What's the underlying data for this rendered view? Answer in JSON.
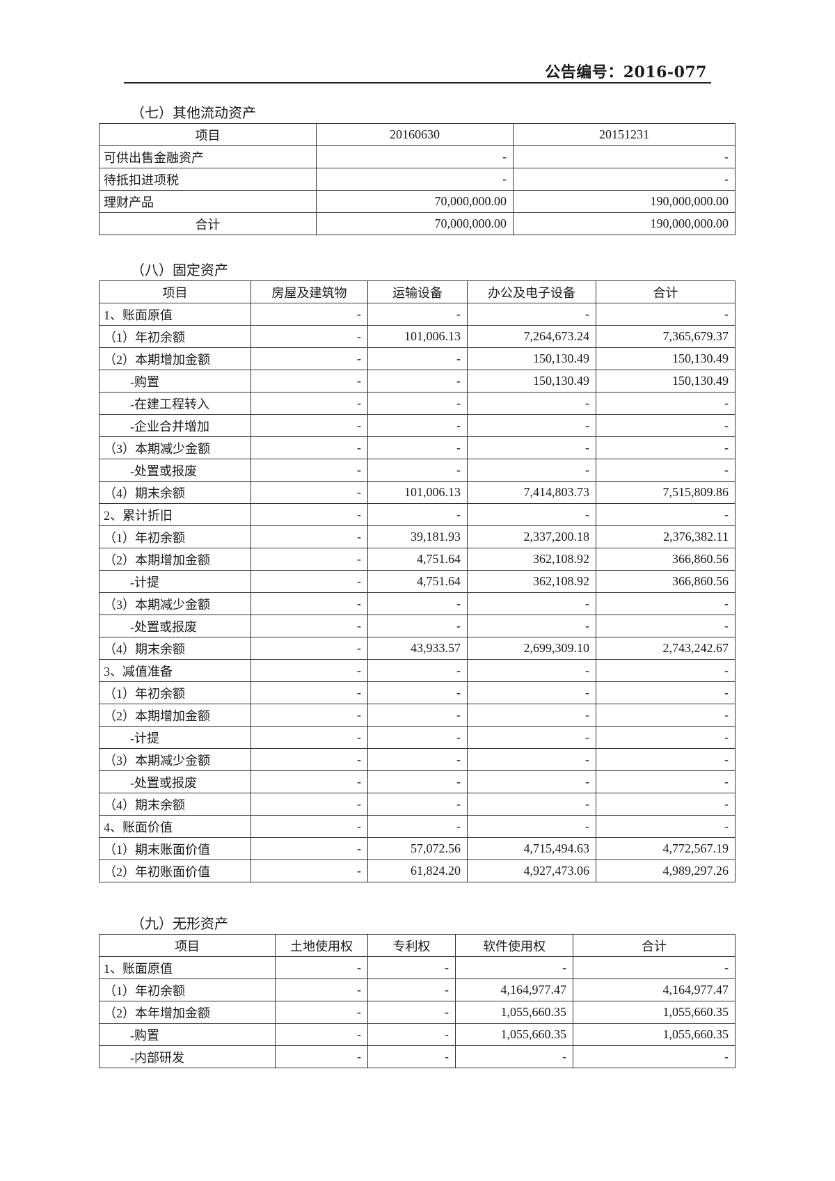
{
  "header": {
    "announcement_no": "公告编号：2016-077"
  },
  "section7": {
    "title": "（七）其他流动资产",
    "columns": [
      "项目",
      "20160630",
      "20151231"
    ],
    "rows": [
      [
        "可供出售金融资产",
        "-",
        "-"
      ],
      [
        "待抵扣进项税",
        "-",
        "-"
      ],
      [
        "理财产品",
        "70,000,000.00",
        "190,000,000.00"
      ],
      [
        "合计",
        "70,000,000.00",
        "190,000,000.00"
      ]
    ]
  },
  "section8": {
    "title": "（八）固定资产",
    "columns": [
      "项目",
      "房屋及建筑物",
      "运输设备",
      "办公及电子设备",
      "合计"
    ],
    "rows": [
      [
        "1、账面原值",
        "-",
        "-",
        "-",
        "-"
      ],
      [
        "（1）年初余额",
        "-",
        "101,006.13",
        "7,264,673.24",
        "7,365,679.37"
      ],
      [
        "（2）本期增加金额",
        "-",
        "-",
        "150,130.49",
        "150,130.49"
      ],
      [
        "-购置",
        "-",
        "-",
        "150,130.49",
        "150,130.49"
      ],
      [
        "-在建工程转入",
        "-",
        "-",
        "-",
        "-"
      ],
      [
        "-企业合并增加",
        "-",
        "-",
        "-",
        "-"
      ],
      [
        "（3）本期减少金额",
        "-",
        "-",
        "-",
        "-"
      ],
      [
        "-处置或报废",
        "-",
        "-",
        "-",
        "-"
      ],
      [
        "（4）期末余额",
        "-",
        "101,006.13",
        "7,414,803.73",
        "7,515,809.86"
      ],
      [
        "2、累计折旧",
        "-",
        "-",
        "-",
        "-"
      ],
      [
        "（1）年初余额",
        "-",
        "39,181.93",
        "2,337,200.18",
        "2,376,382.11"
      ],
      [
        "（2）本期增加金额",
        "-",
        "4,751.64",
        "362,108.92",
        "366,860.56"
      ],
      [
        "-计提",
        "-",
        "4,751.64",
        "362,108.92",
        "366,860.56"
      ],
      [
        "（3）本期减少金额",
        "-",
        "-",
        "-",
        "-"
      ],
      [
        "-处置或报废",
        "-",
        "-",
        "-",
        "-"
      ],
      [
        "（4）期末余额",
        "-",
        "43,933.57",
        "2,699,309.10",
        "2,743,242.67"
      ],
      [
        "3、减值准备",
        "-",
        "-",
        "-",
        "-"
      ],
      [
        "（1）年初余额",
        "-",
        "-",
        "-",
        "-"
      ],
      [
        "（2）本期增加金额",
        "-",
        "-",
        "-",
        "-"
      ],
      [
        "-计提",
        "-",
        "-",
        "-",
        "-"
      ],
      [
        "（3）本期减少金额",
        "-",
        "-",
        "-",
        "-"
      ],
      [
        "-处置或报废",
        "-",
        "-",
        "-",
        "-"
      ],
      [
        "（4）期末余额",
        "-",
        "-",
        "-",
        "-"
      ],
      [
        "4、账面价值",
        "-",
        "-",
        "-",
        "-"
      ],
      [
        "（1）期末账面价值",
        "-",
        "57,072.56",
        "4,715,494.63",
        "4,772,567.19"
      ],
      [
        "（2）年初账面价值",
        "-",
        "61,824.20",
        "4,927,473.06",
        "4,989,297.26"
      ]
    ]
  },
  "section9": {
    "title": "（九）无形资产",
    "columns": [
      "项目",
      "土地使用权",
      "专利权",
      "软件使用权",
      "合计"
    ],
    "rows": [
      [
        "1、账面原值",
        "-",
        "-",
        "-",
        "-"
      ],
      [
        "（1）年初余额",
        "-",
        "-",
        "4,164,977.47",
        "4,164,977.47"
      ],
      [
        "（2）本年增加金额",
        "-",
        "-",
        "1,055,660.35",
        "1,055,660.35"
      ],
      [
        "-购置",
        "-",
        "-",
        "1,055,660.35",
        "1,055,660.35"
      ],
      [
        "-内部研发",
        "-",
        "-",
        "-",
        "-"
      ]
    ]
  }
}
